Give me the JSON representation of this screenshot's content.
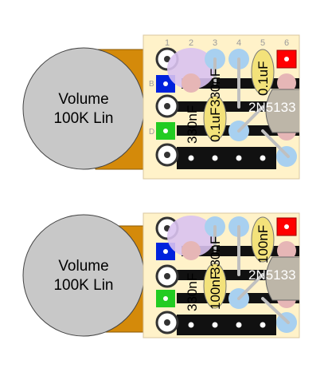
{
  "colors": {
    "board": "#fff2c9",
    "board_border": "#d8c7a0",
    "pot_body": "#c8c8c8",
    "pot_lug": "#d48a0a",
    "terminal": "#555555",
    "strip": "#111111",
    "pad_blue": "#a8d0f0",
    "pad_pink": "#e6b6b6",
    "jack_red": "#ff0000",
    "jack_blue": "#0022dd",
    "jack_green": "#22cc22",
    "cap_film": "#f3e27a",
    "cap_purple": "#d9c2f0",
    "transistor": "#bdb6a8",
    "wire": "#c0c0c0"
  },
  "layouts": [
    {
      "pot_label_line1": "Volume",
      "pot_label_line2": "100K Lin",
      "column_numbers": [
        "1",
        "2",
        "3",
        "4",
        "5",
        "6"
      ],
      "row_letters": [
        "B",
        "D"
      ],
      "capacitors": [
        {
          "value": "330nF"
        },
        {
          "value": "330nF"
        },
        {
          "value": "0.1uF"
        },
        {
          "value": "0.1uF"
        }
      ],
      "transistor_label": "2N5133"
    },
    {
      "pot_label_line1": "Volume",
      "pot_label_line2": "100K Lin",
      "column_numbers": [],
      "row_letters": [],
      "capacitors": [
        {
          "value": "330nF"
        },
        {
          "value": "330nF"
        },
        {
          "value": "100nF"
        },
        {
          "value": "100nF"
        }
      ],
      "transistor_label": "2N5133"
    }
  ]
}
